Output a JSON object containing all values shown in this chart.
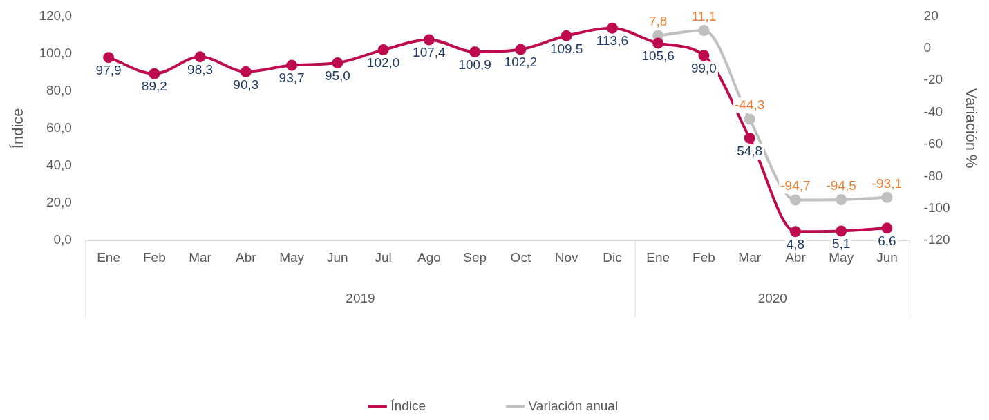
{
  "chart_data": {
    "type": "line",
    "ylabel": "Índice",
    "y2label": "Variación %",
    "categories": [
      "Ene",
      "Feb",
      "Mar",
      "Abr",
      "May",
      "Jun",
      "Jul",
      "Ago",
      "Sep",
      "Oct",
      "Nov",
      "Dic",
      "Ene",
      "Feb",
      "Mar",
      "Abr",
      "May",
      "Jun"
    ],
    "annotations": [
      "2019",
      "2020"
    ],
    "series": [
      {
        "name": "Índice",
        "color": "#be0a4f",
        "values": [
          97.9,
          89.2,
          98.3,
          90.3,
          93.7,
          95.0,
          102.0,
          107.4,
          100.9,
          102.2,
          109.5,
          113.6,
          105.6,
          99.0,
          54.8,
          4.8,
          5.1,
          6.6
        ],
        "value_labels": [
          "97,9",
          "89,2",
          "98,3",
          "90,3",
          "93,7",
          "95,0",
          "102,0",
          "107,4",
          "100,9",
          "102,2",
          "109,5",
          "113,6",
          "105,6",
          "99,0",
          "54,8",
          "4,8",
          "5,1",
          "6,6"
        ]
      },
      {
        "name": "Variación anual",
        "color": "#c0c0c0",
        "axis": "y2",
        "values": [
          null,
          null,
          null,
          null,
          null,
          null,
          null,
          null,
          null,
          null,
          null,
          null,
          7.8,
          11.1,
          -44.3,
          -94.7,
          -94.5,
          -93.1
        ],
        "value_labels": [
          null,
          null,
          null,
          null,
          null,
          null,
          null,
          null,
          null,
          null,
          null,
          null,
          "7,8",
          "11,1",
          "-44,3",
          "-94,7",
          "-94,5",
          "-93,1"
        ]
      }
    ],
    "ylim": [
      0,
      120
    ],
    "yticks": [
      {
        "value": 0,
        "label": "0,0"
      },
      {
        "value": 20,
        "label": "20,0"
      },
      {
        "value": 40,
        "label": "40,0"
      },
      {
        "value": 60,
        "label": "60,0"
      },
      {
        "value": 80,
        "label": "80,0"
      },
      {
        "value": 100,
        "label": "100,0"
      },
      {
        "value": 120,
        "label": "120,0"
      }
    ],
    "y2lim": [
      -120,
      20
    ],
    "y2ticks": [
      -120,
      -100,
      -80,
      -60,
      -40,
      -20,
      0,
      20
    ],
    "grid": false,
    "legend": "bottom",
    "marker": "circle",
    "line_style": "solid"
  }
}
